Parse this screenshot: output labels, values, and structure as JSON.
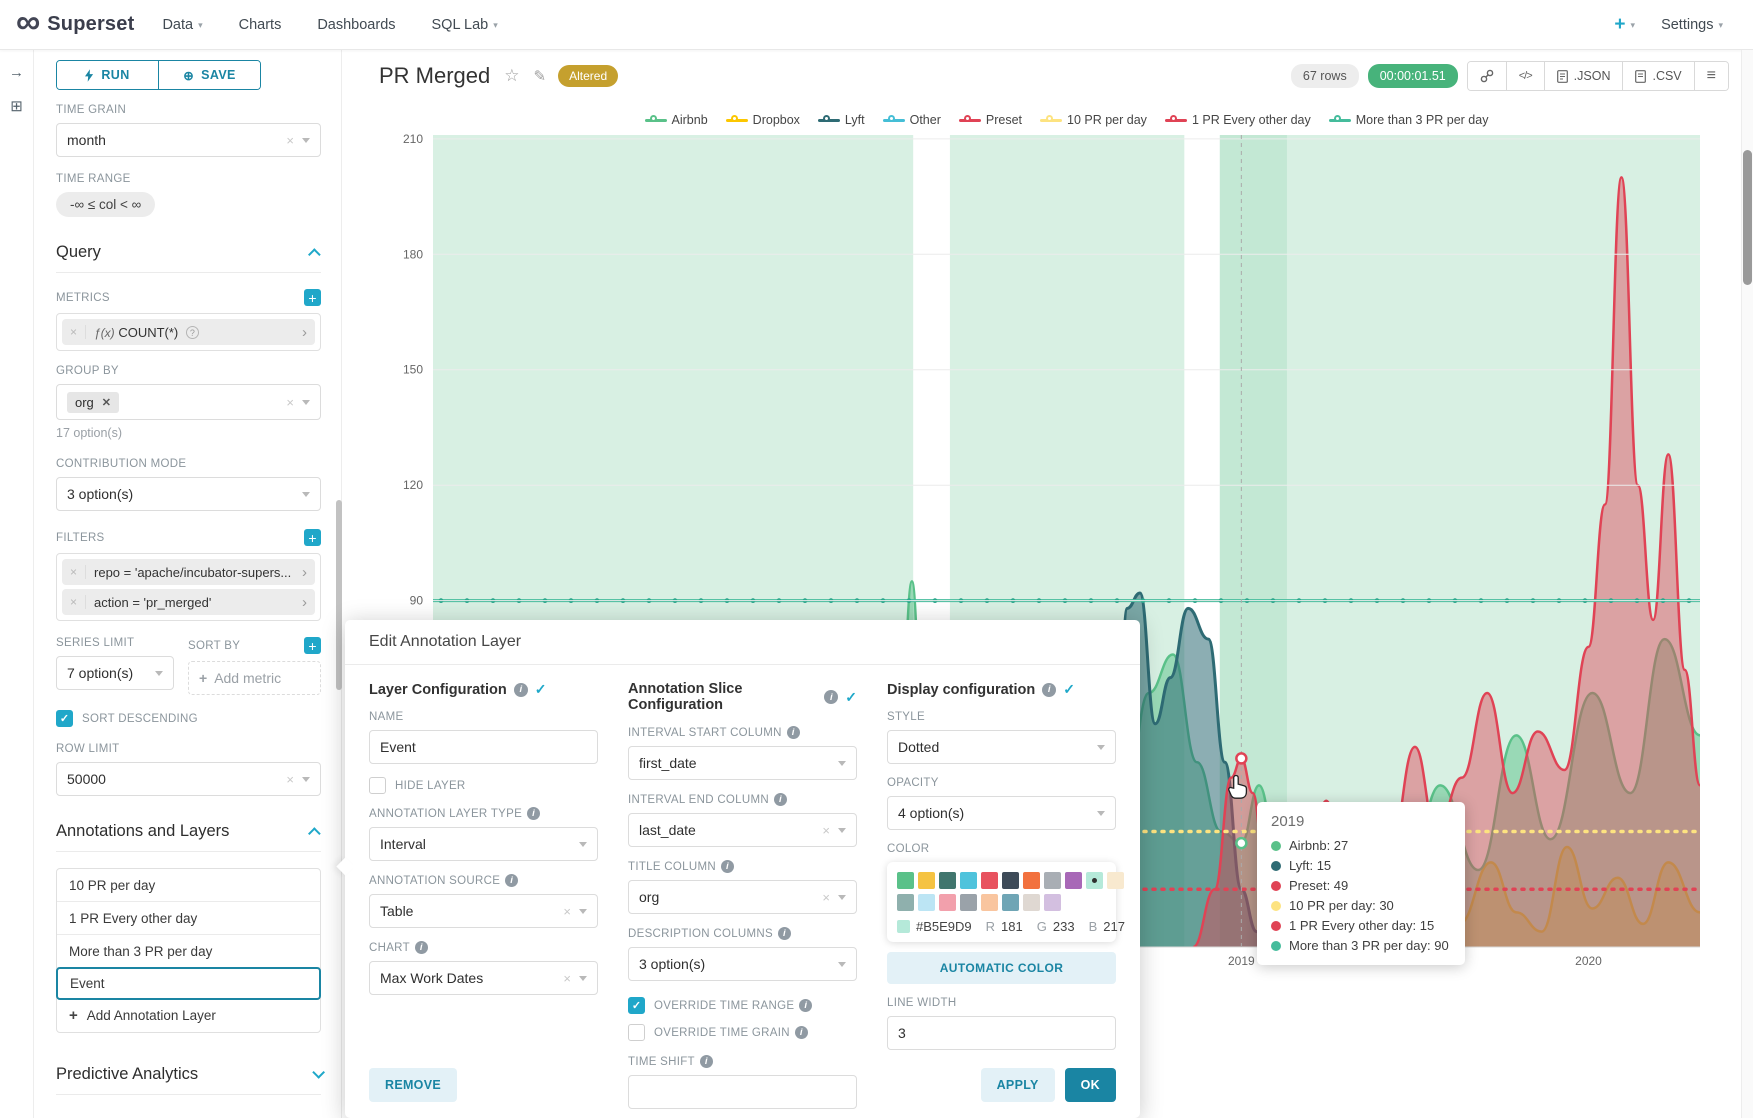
{
  "navbar": {
    "brand": "Superset",
    "menus": [
      {
        "label": "Data",
        "caret": true
      },
      {
        "label": "Charts",
        "caret": false
      },
      {
        "label": "Dashboards",
        "caret": false
      },
      {
        "label": "SQL Lab",
        "caret": true
      }
    ],
    "new_button": "+",
    "settings": "Settings"
  },
  "icons": {
    "star": "☆",
    "edit": "✎",
    "menu": "≡",
    "close": "×",
    "chevron_right": "›",
    "check": "✓",
    "circle_plus": "⊕",
    "grid": "⊞",
    "collapse_arrow": "→",
    "question": "?",
    "info": "i",
    "code": "</>",
    "plus": "+"
  },
  "controls": {
    "run": "RUN",
    "save": "SAVE",
    "time_grain": {
      "label": "TIME GRAIN",
      "value": "month"
    },
    "time_range": {
      "label": "TIME RANGE",
      "value": "-∞ ≤ col < ∞"
    },
    "query_section": "Query",
    "metrics": {
      "label": "METRICS",
      "fn": "ƒ(x)",
      "value": "COUNT(*)"
    },
    "group_by": {
      "label": "GROUP BY",
      "value": "org",
      "hint": "17 option(s)"
    },
    "contribution_mode": {
      "label": "CONTRIBUTION MODE",
      "value": "3 option(s)"
    },
    "filters": {
      "label": "FILTERS",
      "values": [
        "repo = 'apache/incubator-supers...",
        "action = 'pr_merged'"
      ]
    },
    "series_limit": {
      "label": "SERIES LIMIT",
      "value": "7 option(s)"
    },
    "sort_by": {
      "label": "SORT BY",
      "placeholder": "Add metric"
    },
    "sort_descending": "SORT DESCENDING",
    "row_limit": {
      "label": "ROW LIMIT",
      "value": "50000"
    },
    "annotations_section": "Annotations and Layers",
    "annotation_layers": [
      "10 PR per day",
      "1 PR Every other day",
      "More than 3 PR per day",
      "Event"
    ],
    "selected_annotation": "Event",
    "add_annotation": "Add Annotation Layer",
    "predictive_section": "Predictive Analytics"
  },
  "header": {
    "title": "PR Merged",
    "badge": "Altered",
    "rows": "67 rows",
    "duration": "00:00:01.51",
    "export_json": ".JSON",
    "export_csv": ".CSV"
  },
  "modal": {
    "title": "Edit Annotation Layer",
    "sections": {
      "layer": "Layer Configuration",
      "slice": "Annotation Slice Configuration",
      "display": "Display configuration"
    },
    "name": {
      "label": "NAME",
      "value": "Event"
    },
    "hide_layer": "HIDE LAYER",
    "layer_type": {
      "label": "ANNOTATION LAYER TYPE",
      "value": "Interval"
    },
    "source": {
      "label": "ANNOTATION SOURCE",
      "value": "Table"
    },
    "chart": {
      "label": "CHART",
      "value": "Max Work Dates"
    },
    "interval_start": {
      "label": "INTERVAL START COLUMN",
      "value": "first_date"
    },
    "interval_end": {
      "label": "INTERVAL END COLUMN",
      "value": "last_date"
    },
    "title_column": {
      "label": "TITLE COLUMN",
      "value": "org"
    },
    "description_columns": {
      "label": "DESCRIPTION COLUMNS",
      "value": "3 option(s)"
    },
    "override_time_range": "OVERRIDE TIME RANGE",
    "override_time_grain": "OVERRIDE TIME GRAIN",
    "time_shift": {
      "label": "TIME SHIFT",
      "value": ""
    },
    "style": {
      "label": "STYLE",
      "value": "Dotted"
    },
    "opacity": {
      "label": "OPACITY",
      "value": "4 option(s)"
    },
    "color": {
      "label": "COLOR",
      "hex": "#B5E9D9",
      "r_label": "R",
      "r": "181",
      "g_label": "G",
      "g": "233",
      "b_label": "B",
      "b": "217",
      "swatches_row1": [
        "#5AC189",
        "#F5C342",
        "#41766E",
        "#4FC3DC",
        "#E8525F",
        "#3E4B58",
        "#F2713E",
        "#A9AEB4",
        "#A868B7",
        "#B5E9D9",
        "#F8E9CF"
      ],
      "swatches_row2": [
        "#8FB0AD",
        "#BCE5F4",
        "#F2A0AC",
        "#9AA2A9",
        "#F9C59F",
        "#6FA5B5",
        "#DFD8D2",
        "#D3BFE0"
      ],
      "selected_index_row1": 9,
      "automatic": "AUTOMATIC COLOR"
    },
    "line_width": {
      "label": "LINE WIDTH",
      "value": "3"
    },
    "remove": "REMOVE",
    "apply": "APPLY",
    "ok": "OK"
  },
  "tooltip": {
    "title": "2019",
    "rows": [
      {
        "name": "Airbnb",
        "value": "27",
        "color": "#5AC189"
      },
      {
        "name": "Lyft",
        "value": "15",
        "color": "#2E6B74"
      },
      {
        "name": "Preset",
        "value": "49",
        "color": "#E04355"
      },
      {
        "name": "10 PR per day",
        "value": "30",
        "color": "#FDE380"
      },
      {
        "name": "1 PR Every other day",
        "value": "15",
        "color": "#E04355"
      },
      {
        "name": "More than 3 PR per day",
        "value": "90",
        "color": "#45BC9C"
      }
    ]
  },
  "chart_data": {
    "type": "area",
    "title": "PR Merged",
    "xlabel": "",
    "ylabel": "",
    "ylim": [
      0,
      211
    ],
    "y_ticks": [
      90,
      120,
      150,
      180,
      210
    ],
    "x_ticks": [
      {
        "label": "2019",
        "pos": 0.638
      },
      {
        "label": "2020",
        "pos": 0.912
      }
    ],
    "grid": true,
    "legend_position": "top",
    "legend": [
      {
        "label": "Airbnb",
        "color": "#5AC189"
      },
      {
        "label": "Dropbox",
        "color": "#FCC700"
      },
      {
        "label": "Lyft",
        "color": "#2E6B74"
      },
      {
        "label": "Other",
        "color": "#45BED6"
      },
      {
        "label": "Preset",
        "color": "#E04355"
      },
      {
        "label": "10 PR per day",
        "color": "#FDE380"
      },
      {
        "label": "1 PR Every other day",
        "color": "#E04355"
      },
      {
        "label": "More than 3 PR per day",
        "color": "#45BC9C"
      }
    ],
    "series": [
      {
        "name": "Other",
        "color": "#45BED6",
        "width": 2,
        "opacity": 0.4,
        "points": [
          [
            0.1,
            0
          ],
          [
            0.14,
            2
          ],
          [
            0.18,
            7
          ],
          [
            0.22,
            2
          ],
          [
            0.26,
            10
          ],
          [
            0.3,
            3
          ],
          [
            0.335,
            1
          ],
          [
            0.375,
            8
          ],
          [
            0.41,
            2
          ],
          [
            0.45,
            1
          ],
          [
            0.5,
            0
          ]
        ]
      },
      {
        "name": "Dropbox",
        "color": "#FCC700",
        "width": 2.5,
        "opacity": 0.4,
        "points": [
          [
            0.78,
            0
          ],
          [
            0.81,
            6
          ],
          [
            0.835,
            22
          ],
          [
            0.855,
            9
          ],
          [
            0.875,
            4
          ],
          [
            0.895,
            26
          ],
          [
            0.915,
            10
          ],
          [
            0.935,
            18
          ],
          [
            0.955,
            6
          ],
          [
            0.975,
            22
          ],
          [
            1,
            9
          ]
        ]
      },
      {
        "name": "Airbnb",
        "color": "#5AC189",
        "width": 2.5,
        "opacity": 0.5,
        "points": [
          [
            0,
            3
          ],
          [
            0.08,
            5
          ],
          [
            0.16,
            7
          ],
          [
            0.24,
            4
          ],
          [
            0.3,
            9
          ],
          [
            0.345,
            4
          ],
          [
            0.365,
            12
          ],
          [
            0.378,
            95
          ],
          [
            0.39,
            14
          ],
          [
            0.42,
            18
          ],
          [
            0.455,
            8
          ],
          [
            0.49,
            14
          ],
          [
            0.52,
            10
          ],
          [
            0.545,
            34
          ],
          [
            0.565,
            66
          ],
          [
            0.584,
            76
          ],
          [
            0.603,
            48
          ],
          [
            0.622,
            30
          ],
          [
            0.638,
            27
          ],
          [
            0.652,
            42
          ],
          [
            0.668,
            20
          ],
          [
            0.695,
            36
          ],
          [
            0.718,
            13
          ],
          [
            0.742,
            26
          ],
          [
            0.768,
            16
          ],
          [
            0.795,
            42
          ],
          [
            0.825,
            20
          ],
          [
            0.855,
            55
          ],
          [
            0.882,
            28
          ],
          [
            0.915,
            66
          ],
          [
            0.945,
            40
          ],
          [
            0.972,
            80
          ],
          [
            1,
            55
          ]
        ]
      },
      {
        "name": "Lyft",
        "color": "#2E6B74",
        "width": 3,
        "opacity": 0.55,
        "points": [
          [
            0.525,
            0
          ],
          [
            0.538,
            30
          ],
          [
            0.548,
            88
          ],
          [
            0.558,
            92
          ],
          [
            0.57,
            58
          ],
          [
            0.582,
            70
          ],
          [
            0.596,
            88
          ],
          [
            0.612,
            80
          ],
          [
            0.625,
            48
          ],
          [
            0.638,
            15
          ],
          [
            0.65,
            4
          ],
          [
            0.66,
            0
          ]
        ]
      },
      {
        "name": "Preset",
        "color": "#E04355",
        "width": 2.5,
        "opacity": 0.45,
        "points": [
          [
            0.6,
            0
          ],
          [
            0.617,
            15
          ],
          [
            0.63,
            44
          ],
          [
            0.638,
            49
          ],
          [
            0.647,
            40
          ],
          [
            0.658,
            15
          ],
          [
            0.672,
            4
          ],
          [
            0.69,
            18
          ],
          [
            0.705,
            38
          ],
          [
            0.72,
            18
          ],
          [
            0.738,
            6
          ],
          [
            0.755,
            24
          ],
          [
            0.775,
            52
          ],
          [
            0.792,
            30
          ],
          [
            0.812,
            44
          ],
          [
            0.832,
            66
          ],
          [
            0.852,
            40
          ],
          [
            0.872,
            56
          ],
          [
            0.893,
            46
          ],
          [
            0.912,
            78
          ],
          [
            0.925,
            115
          ],
          [
            0.938,
            200
          ],
          [
            0.951,
            120
          ],
          [
            0.963,
            85
          ],
          [
            0.975,
            128
          ],
          [
            0.988,
            72
          ],
          [
            1,
            42
          ]
        ]
      }
    ],
    "annotation_lines": [
      {
        "name": "More than 3 PR per day",
        "value": 90,
        "style": "solid",
        "color": "#45BC9C"
      },
      {
        "name": "10 PR per day",
        "value": 30,
        "style": "dotted",
        "color": "#FDE380"
      },
      {
        "name": "1 PR Every other day",
        "value": 15,
        "style": "dotted",
        "color": "#E04355"
      }
    ],
    "annotation_bands": {
      "color": "#5AC189",
      "opacity": 0.24,
      "intervals": [
        [
          0,
          0.379
        ],
        [
          0.408,
          0.593
        ],
        [
          0.621,
          1.0
        ]
      ],
      "overlap_intervals": [
        [
          0.621,
          0.674
        ]
      ]
    },
    "hover": {
      "x": 0.638,
      "label": "2019",
      "points": [
        {
          "series": "Preset",
          "value": 49,
          "color": "#E04355"
        },
        {
          "series": "Airbnb",
          "value": 27,
          "color": "#5AC189"
        }
      ]
    }
  }
}
